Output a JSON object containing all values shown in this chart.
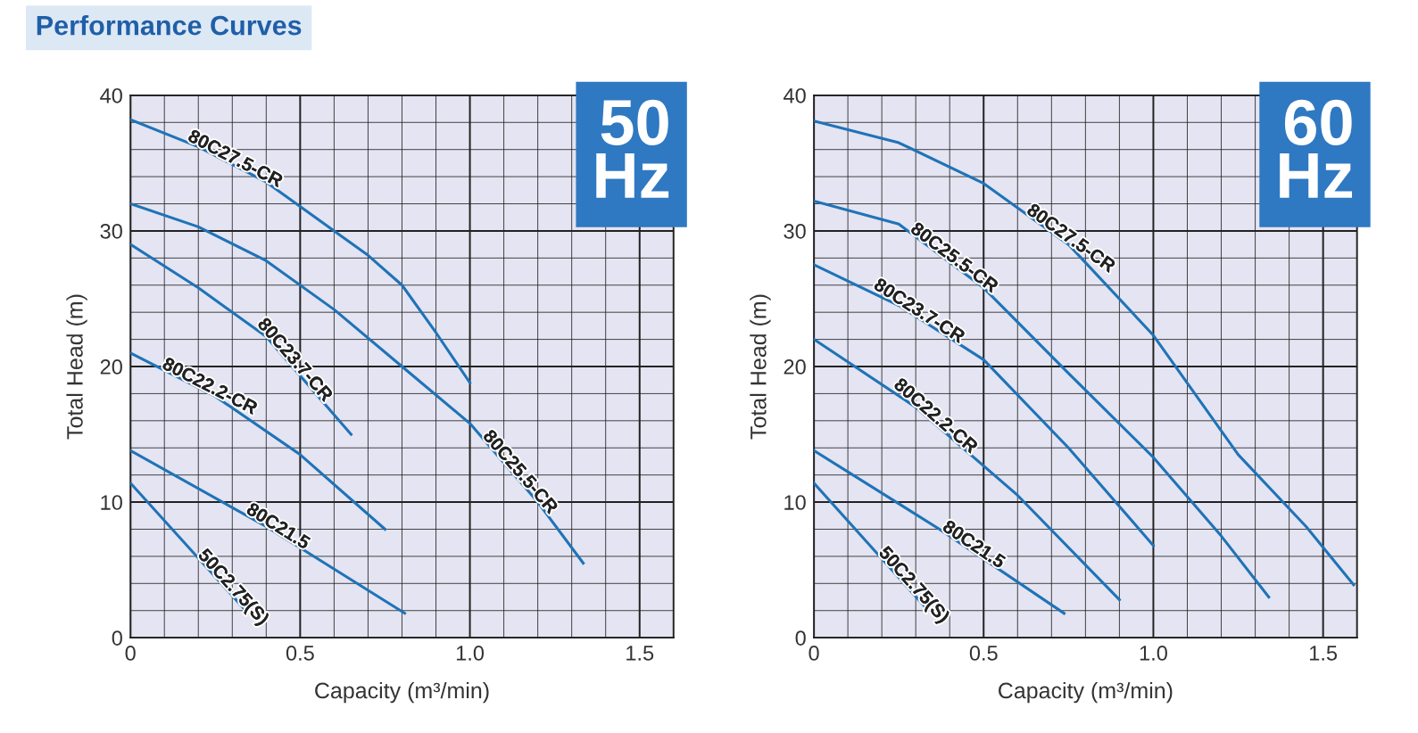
{
  "chart_data": [
    {
      "type": "line",
      "title": "Performance Curves",
      "xlabel": "Capacity (m³/min)",
      "ylabel": "Total Head (m)",
      "annotations": [
        "50\nHz"
      ],
      "xlim": [
        0,
        1.6
      ],
      "ylim": [
        0,
        40
      ],
      "xticks": [
        0,
        {
          "value": 0.5,
          "label": "0.5"
        },
        {
          "value": 1.0,
          "label": "1.0"
        },
        {
          "value": 1.5,
          "label": "1.5"
        }
      ],
      "yticks": [
        0,
        10,
        20,
        30,
        40
      ],
      "grid": true,
      "marker": "none",
      "line_style": "solid",
      "series": [
        {
          "name": "80C27.5-CR",
          "color": "#1f73b7",
          "x": [
            0,
            0.2,
            0.4,
            0.6,
            0.7,
            0.8,
            0.9,
            1.0
          ],
          "values": [
            38.2,
            36.2,
            33.6,
            30.0,
            28.2,
            26.0,
            22.5,
            18.8
          ]
        },
        {
          "name": "80C25.5-CR",
          "color": "#1f73b7",
          "x": [
            0,
            0.2,
            0.4,
            0.6,
            0.8,
            1.0,
            1.2,
            1.334
          ],
          "values": [
            32.0,
            30.3,
            27.8,
            24.2,
            20.0,
            15.8,
            10.0,
            5.5
          ]
        },
        {
          "name": "80C23.7-CR",
          "color": "#1f73b7",
          "x": [
            0,
            0.2,
            0.4,
            0.65
          ],
          "values": [
            29.0,
            25.8,
            22.2,
            15.0
          ]
        },
        {
          "name": "80C22.2-CR",
          "color": "#1f73b7",
          "x": [
            0,
            0.25,
            0.5,
            0.75
          ],
          "values": [
            21.0,
            17.8,
            13.5,
            8.0
          ]
        },
        {
          "name": "80C21.5",
          "color": "#1f73b7",
          "x": [
            0,
            0.4,
            0.808
          ],
          "values": [
            13.8,
            8.2,
            1.8
          ]
        },
        {
          "name": "50C2.75(S)",
          "color": "#1f73b7",
          "x": [
            0,
            0.34
          ],
          "values": [
            11.4,
            2.0
          ]
        }
      ]
    },
    {
      "type": "line",
      "xlabel": "Capacity (m³/min)",
      "ylabel": "Total Head (m)",
      "annotations": [
        "60\nHz"
      ],
      "xlim": [
        0,
        1.6
      ],
      "ylim": [
        0,
        40
      ],
      "xticks": [
        0,
        {
          "value": 0.5,
          "label": "0.5"
        },
        {
          "value": 1.0,
          "label": "1.0"
        },
        {
          "value": 1.5,
          "label": "1.5"
        }
      ],
      "yticks": [
        0,
        10,
        20,
        30,
        40
      ],
      "grid": true,
      "marker": "none",
      "line_style": "solid",
      "series": [
        {
          "name": "80C27.5-CR",
          "color": "#1f73b7",
          "x": [
            0,
            0.25,
            0.5,
            0.75,
            1.0,
            1.25,
            1.45,
            1.59
          ],
          "values": [
            38.1,
            36.5,
            33.5,
            29.0,
            22.3,
            13.5,
            8.2,
            3.9
          ]
        },
        {
          "name": "80C25.5-CR",
          "color": "#1f73b7",
          "x": [
            0,
            0.25,
            0.5,
            0.75,
            1.0,
            1.2,
            1.34
          ],
          "values": [
            32.2,
            30.5,
            25.8,
            19.5,
            13.3,
            7.5,
            3.0
          ]
        },
        {
          "name": "80C23.7-CR",
          "color": "#1f73b7",
          "x": [
            0,
            0.25,
            0.5,
            0.75,
            1.0
          ],
          "values": [
            27.5,
            24.5,
            20.5,
            14.0,
            6.8
          ]
        },
        {
          "name": "80C22.2-CR",
          "color": "#1f73b7",
          "x": [
            0,
            0.3,
            0.6,
            0.9
          ],
          "values": [
            22.0,
            17.0,
            10.5,
            2.8
          ]
        },
        {
          "name": "80C21.5",
          "color": "#1f73b7",
          "x": [
            0,
            0.37,
            0.737
          ],
          "values": [
            13.8,
            8.0,
            1.8
          ]
        },
        {
          "name": "50C2.75(S)",
          "color": "#1f73b7",
          "x": [
            0,
            0.33
          ],
          "values": [
            11.4,
            2.2
          ]
        }
      ]
    }
  ]
}
